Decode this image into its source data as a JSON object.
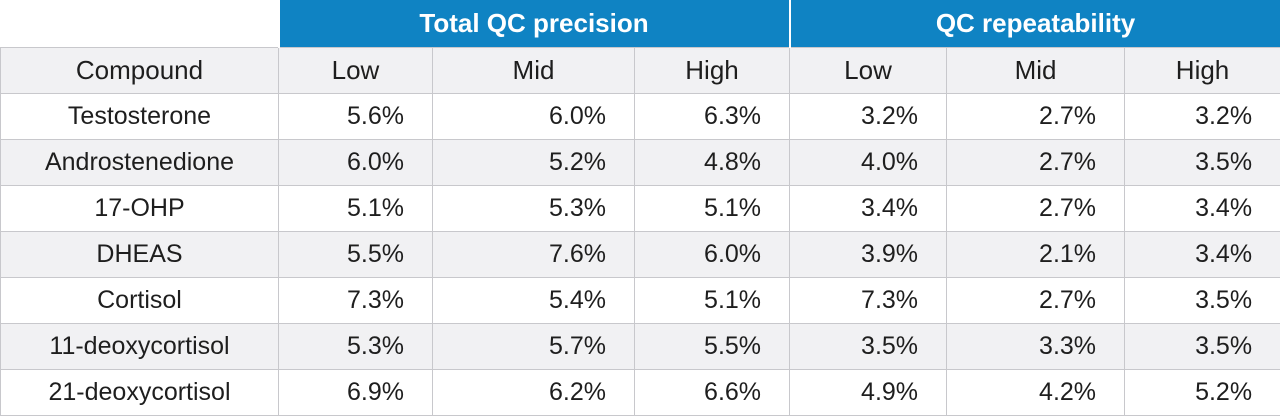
{
  "table": {
    "groups": {
      "total_precision": "Total QC precision",
      "repeatability": "QC repeatability"
    },
    "headers": [
      "Compound",
      "Low",
      "Mid",
      "High",
      "Low",
      "Mid",
      "High"
    ],
    "rows": [
      [
        "Testosterone",
        "5.6%",
        "6.0%",
        "6.3%",
        "3.2%",
        "2.7%",
        "3.2%"
      ],
      [
        "Androstenedione",
        "6.0%",
        "5.2%",
        "4.8%",
        "4.0%",
        "2.7%",
        "3.5%"
      ],
      [
        "17-OHP",
        "5.1%",
        "5.3%",
        "5.1%",
        "3.4%",
        "2.7%",
        "3.4%"
      ],
      [
        "DHEAS",
        "5.5%",
        "7.6%",
        "6.0%",
        "3.9%",
        "2.1%",
        "3.4%"
      ],
      [
        "Cortisol",
        "7.3%",
        "5.4%",
        "5.1%",
        "7.3%",
        "2.7%",
        "3.5%"
      ],
      [
        "11-deoxycortisol",
        "5.3%",
        "5.7%",
        "5.5%",
        "3.5%",
        "3.3%",
        "3.5%"
      ],
      [
        "21-deoxycortisol",
        "6.9%",
        "6.2%",
        "6.6%",
        "4.9%",
        "4.2%",
        "5.2%"
      ]
    ]
  },
  "colors": {
    "header_band": "#0f83c3",
    "shaded_row": "#f1f1f3",
    "grid_line": "#c8c8cc"
  }
}
